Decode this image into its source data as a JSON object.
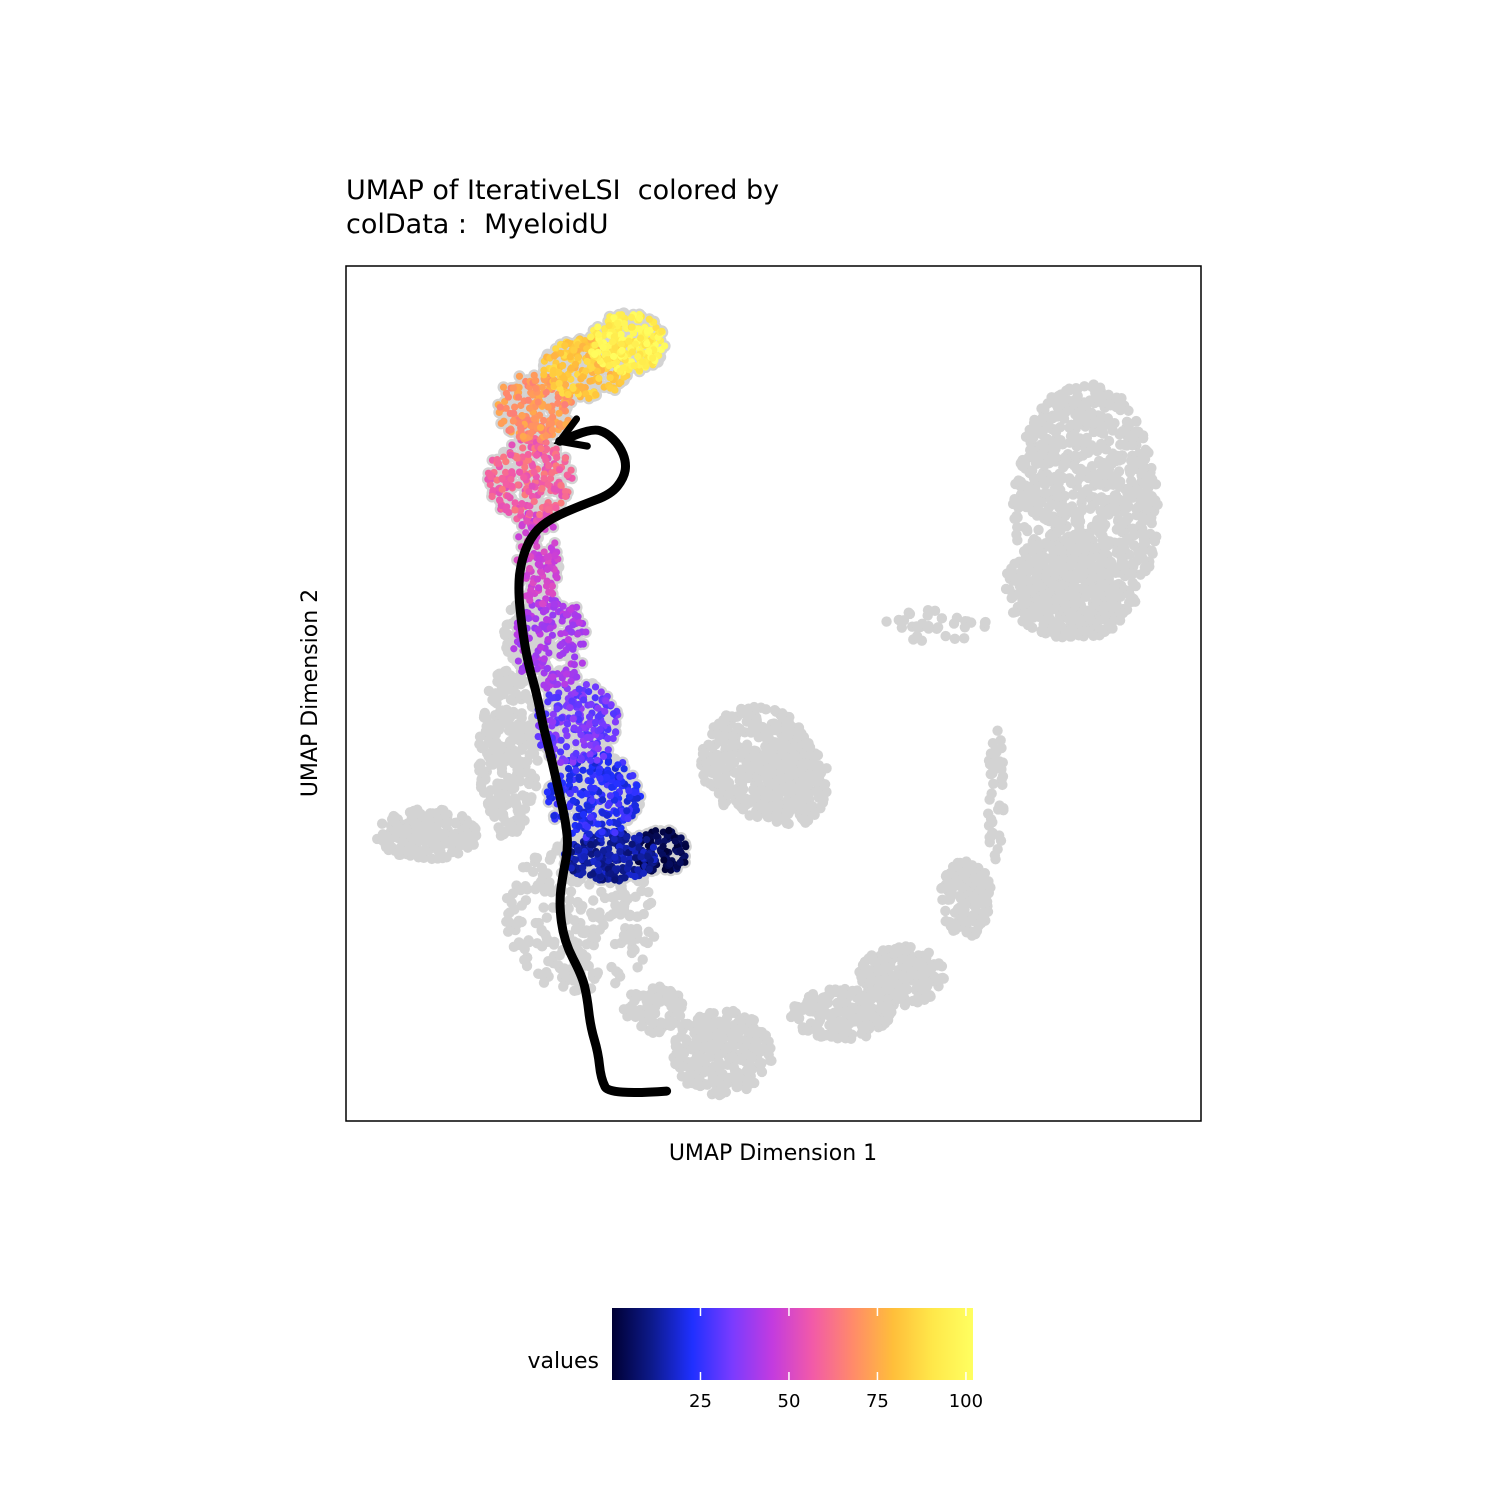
{
  "chart_data": {
    "type": "scatter",
    "title_lines": [
      "UMAP of IterativeLSI  colored by",
      "colData :  MyeloidU"
    ],
    "xlabel": "UMAP Dimension 1",
    "ylabel": "UMAP Dimension 2",
    "axes_ticks_shown": false,
    "grid": false,
    "xlim": [
      0,
      100
    ],
    "ylim": [
      0,
      100
    ],
    "background_color": "#D3D3D3",
    "trajectory_arrow_color": "#000000",
    "colorbar": {
      "title": "values",
      "range": [
        0,
        102
      ],
      "ticks": [
        25,
        50,
        75,
        100
      ],
      "colors": [
        "#000033",
        "#0D1A8C",
        "#1F30FF",
        "#7A3BFF",
        "#C33BDF",
        "#F25AA8",
        "#FF8A6A",
        "#FFBE3A",
        "#FFE84A",
        "#FFFF60"
      ],
      "placement": "bottom"
    },
    "trajectory": [
      [
        37.5,
        3.5
      ],
      [
        30.8,
        3.0
      ],
      [
        29.8,
        5.0
      ],
      [
        29.5,
        8.0
      ],
      [
        28.6,
        11.0
      ],
      [
        28.2,
        14.5
      ],
      [
        27.6,
        17.0
      ],
      [
        25.5,
        21.0
      ],
      [
        24.9,
        25.5
      ],
      [
        25.4,
        29.0
      ],
      [
        26.0,
        32.0
      ],
      [
        25.7,
        35.0
      ],
      [
        24.9,
        38.5
      ],
      [
        24.0,
        42.5
      ],
      [
        23.1,
        46.0
      ],
      [
        22.3,
        50.0
      ],
      [
        21.3,
        53.5
      ],
      [
        20.6,
        57.5
      ],
      [
        20.1,
        62.5
      ],
      [
        20.6,
        66.0
      ],
      [
        21.9,
        68.8
      ],
      [
        24.0,
        70.5
      ],
      [
        27.5,
        72.0
      ],
      [
        31.0,
        73.3
      ],
      [
        32.5,
        75.2
      ],
      [
        32.8,
        77.0
      ],
      [
        32.0,
        79.0
      ],
      [
        30.5,
        80.5
      ],
      [
        28.8,
        81.0
      ],
      [
        25.0,
        79.5
      ]
    ],
    "colored_series_name": "MyeloidU",
    "background_clusters": [
      {
        "cx": 86.5,
        "cy": 71.5,
        "rx": 8.5,
        "ry": 15.0,
        "n": 900
      },
      {
        "cx": 83.5,
        "cy": 62.5,
        "rx": 6.5,
        "ry": 6.0,
        "n": 300
      },
      {
        "cx": 48.0,
        "cy": 42.0,
        "rx": 6.5,
        "ry": 6.5,
        "n": 350
      },
      {
        "cx": 52.0,
        "cy": 39.5,
        "rx": 4.5,
        "ry": 5.0,
        "n": 220
      },
      {
        "cx": 9.5,
        "cy": 33.5,
        "rx": 6.0,
        "ry": 3.0,
        "n": 180
      },
      {
        "cx": 19.0,
        "cy": 43.0,
        "rx": 3.5,
        "ry": 10.0,
        "n": 260
      },
      {
        "cx": 21.0,
        "cy": 57.0,
        "rx": 2.5,
        "ry": 4.0,
        "n": 90
      },
      {
        "cx": 27.5,
        "cy": 24.0,
        "rx": 9.0,
        "ry": 9.0,
        "n": 260
      },
      {
        "cx": 72.5,
        "cy": 26.0,
        "rx": 3.0,
        "ry": 4.5,
        "n": 160
      },
      {
        "cx": 65.0,
        "cy": 17.0,
        "rx": 5.0,
        "ry": 3.5,
        "n": 200
      },
      {
        "cx": 58.0,
        "cy": 12.5,
        "rx": 6.0,
        "ry": 3.0,
        "n": 180
      },
      {
        "cx": 44.0,
        "cy": 8.0,
        "rx": 6.0,
        "ry": 5.0,
        "n": 260
      },
      {
        "cx": 36.0,
        "cy": 13.0,
        "rx": 3.5,
        "ry": 3.0,
        "n": 90
      },
      {
        "cx": 76.0,
        "cy": 38.0,
        "rx": 1.0,
        "ry": 8.0,
        "n": 45
      },
      {
        "cx": 69.0,
        "cy": 58.0,
        "rx": 6.0,
        "ry": 2.0,
        "n": 35
      }
    ],
    "colored_clusters": [
      {
        "cx": 37.0,
        "cy": 31.5,
        "rx": 3.2,
        "ry": 2.6,
        "v0": 0,
        "v1": 8,
        "n": 120
      },
      {
        "cx": 31.0,
        "cy": 31.0,
        "rx": 5.5,
        "ry": 3.0,
        "v0": 8,
        "v1": 18,
        "n": 260
      },
      {
        "cx": 29.0,
        "cy": 38.0,
        "rx": 5.5,
        "ry": 5.0,
        "v0": 18,
        "v1": 28,
        "n": 260
      },
      {
        "cx": 27.0,
        "cy": 46.5,
        "rx": 5.0,
        "ry": 5.0,
        "v0": 28,
        "v1": 38,
        "n": 220
      },
      {
        "cx": 24.0,
        "cy": 56.0,
        "rx": 4.5,
        "ry": 5.5,
        "v0": 38,
        "v1": 45,
        "n": 170
      },
      {
        "cx": 22.5,
        "cy": 66.0,
        "rx": 2.5,
        "ry": 6.0,
        "v0": 45,
        "v1": 52,
        "n": 120
      },
      {
        "cx": 21.5,
        "cy": 75.0,
        "rx": 5.0,
        "ry": 5.0,
        "v0": 52,
        "v1": 65,
        "n": 240
      },
      {
        "cx": 22.0,
        "cy": 83.5,
        "rx": 4.5,
        "ry": 4.0,
        "v0": 65,
        "v1": 76,
        "n": 180
      },
      {
        "cx": 28.0,
        "cy": 88.0,
        "rx": 5.0,
        "ry": 3.5,
        "v0": 76,
        "v1": 88,
        "n": 220
      },
      {
        "cx": 33.0,
        "cy": 91.0,
        "rx": 4.5,
        "ry": 3.5,
        "v0": 88,
        "v1": 102,
        "n": 240
      }
    ]
  }
}
